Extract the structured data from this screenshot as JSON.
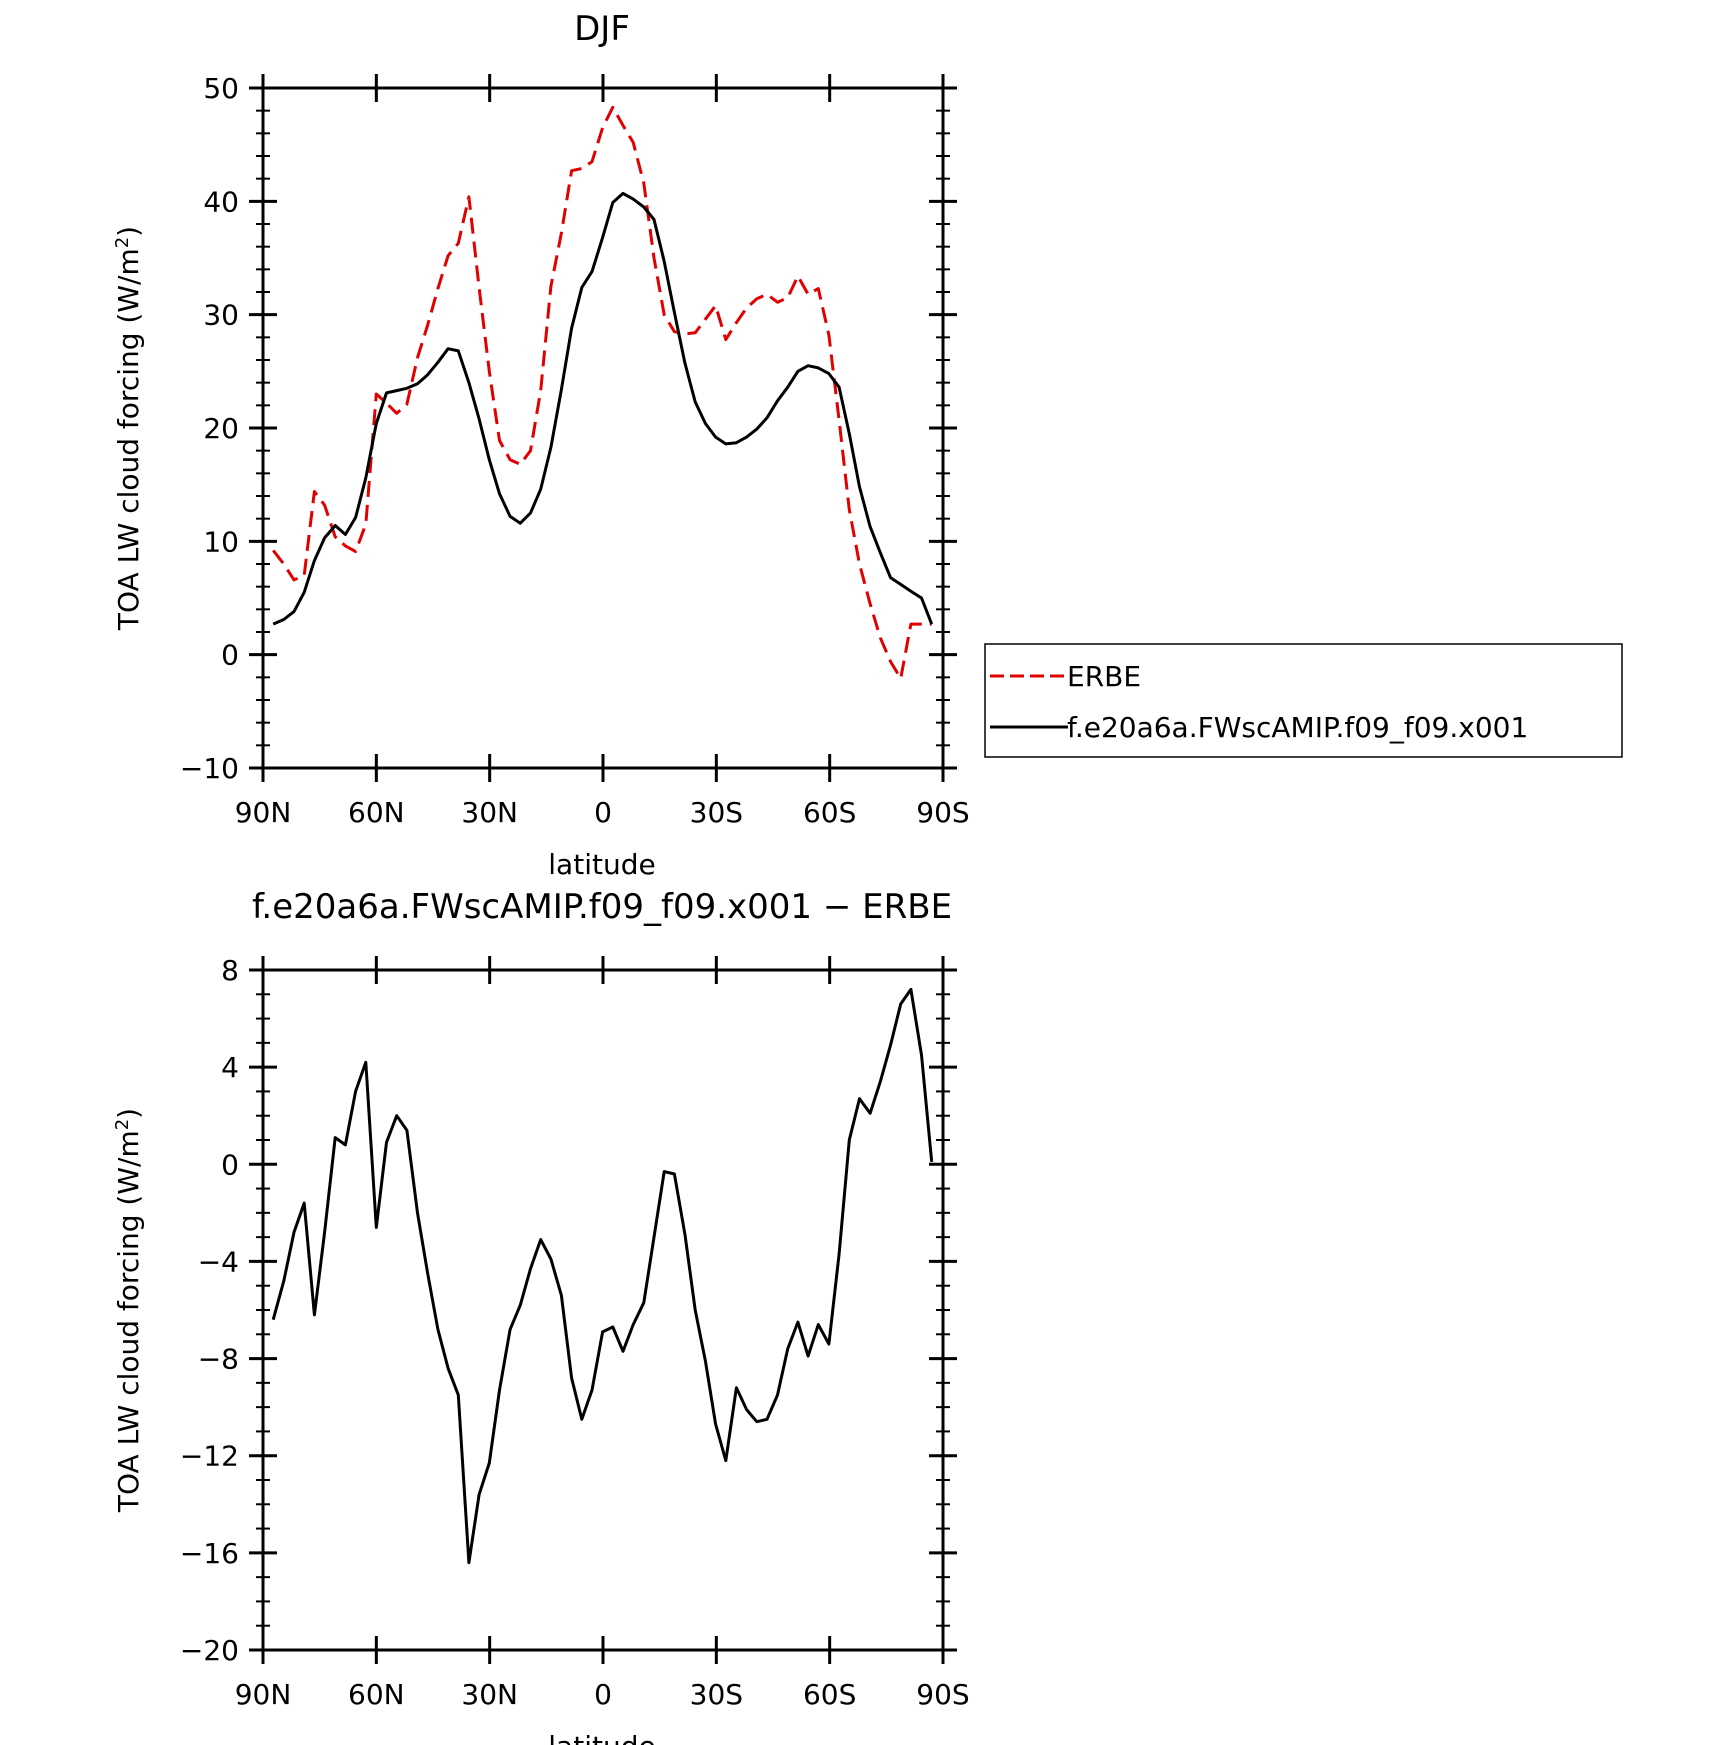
{
  "chart_data": [
    {
      "type": "line",
      "title": "DJF",
      "xlabel": "latitude",
      "ylabel": "TOA LW cloud forcing (W/m",
      "ylabel_sup": "2",
      "ylabel_close": ")",
      "xlim": [
        90,
        -90
      ],
      "ylim": [
        -10,
        50
      ],
      "xticks": [
        {
          "value": 90,
          "label": "90N"
        },
        {
          "value": 60,
          "label": "60N"
        },
        {
          "value": 30,
          "label": "30N"
        },
        {
          "value": 0,
          "label": "0"
        },
        {
          "value": -30,
          "label": "30S"
        },
        {
          "value": -60,
          "label": "60S"
        },
        {
          "value": -90,
          "label": "90S"
        }
      ],
      "yticks": [
        {
          "value": -10,
          "label": "−10"
        },
        {
          "value": 0,
          "label": "0"
        },
        {
          "value": 10,
          "label": "10"
        },
        {
          "value": 20,
          "label": "20"
        },
        {
          "value": 30,
          "label": "30"
        },
        {
          "value": 40,
          "label": "40"
        },
        {
          "value": 50,
          "label": "50"
        }
      ],
      "grid": false,
      "legend": "right",
      "x": [
        87.3,
        84.5,
        81.8,
        79.1,
        76.4,
        73.7,
        70.9,
        68.2,
        65.5,
        62.8,
        60.0,
        57.3,
        54.6,
        51.9,
        49.1,
        46.4,
        43.7,
        41.0,
        38.3,
        35.5,
        32.8,
        30.1,
        27.4,
        24.6,
        21.9,
        19.2,
        16.5,
        13.8,
        11.0,
        8.3,
        5.6,
        2.9,
        0.1,
        -2.6,
        -5.3,
        -8.0,
        -10.8,
        -13.5,
        -16.2,
        -18.9,
        -21.7,
        -24.4,
        -27.1,
        -29.8,
        -32.5,
        -35.3,
        -38.0,
        -40.7,
        -43.4,
        -46.2,
        -48.9,
        -51.6,
        -54.3,
        -57.0,
        -59.8,
        -62.5,
        -65.2,
        -67.9,
        -70.7,
        -73.4,
        -76.1,
        -78.8,
        -81.5,
        -84.3,
        -87.0
      ],
      "series": [
        {
          "name": "ERBE",
          "color": "#e00000",
          "dash": "dashed",
          "values": [
            9.2,
            8.0,
            6.6,
            7.0,
            14.4,
            13.2,
            10.4,
            9.6,
            9.1,
            11.5,
            23.0,
            22.2,
            21.3,
            22.1,
            26.2,
            29.1,
            32.3,
            35.2,
            36.3,
            40.4,
            32.4,
            25.0,
            18.9,
            17.2,
            16.8,
            18.0,
            23.3,
            32.5,
            37.2,
            42.7,
            42.9,
            43.5,
            46.5,
            48.3,
            46.7,
            45.2,
            41.6,
            35.0,
            30.0,
            28.5,
            28.3,
            28.4,
            29.6,
            30.8,
            27.8,
            29.3,
            30.6,
            31.4,
            31.8,
            31.1,
            31.5,
            33.4,
            31.8,
            32.3,
            28.2,
            20.7,
            12.8,
            8.0,
            4.5,
            1.5,
            -0.6,
            -2.1,
            2.7,
            2.7,
            2.7
          ]
        },
        {
          "name": "f.e20a6a.FWscAMIP.f09_f09.x001",
          "color": "#000000",
          "dash": "solid",
          "values": [
            2.7,
            3.1,
            3.8,
            5.5,
            8.3,
            10.3,
            11.4,
            10.6,
            12.1,
            15.6,
            20.4,
            23.1,
            23.3,
            23.5,
            23.9,
            24.7,
            25.8,
            27.0,
            26.8,
            24.0,
            20.8,
            17.2,
            14.2,
            12.2,
            11.6,
            12.5,
            14.6,
            18.3,
            23.4,
            28.8,
            32.4,
            33.8,
            36.8,
            39.9,
            40.7,
            40.2,
            39.5,
            38.4,
            34.7,
            30.2,
            25.7,
            22.3,
            20.4,
            19.2,
            18.6,
            18.7,
            19.2,
            19.9,
            20.9,
            22.4,
            23.6,
            25.0,
            25.5,
            25.3,
            24.8,
            23.6,
            19.5,
            14.8,
            11.3,
            9.0,
            6.8,
            6.2,
            5.6,
            5.0,
            2.7
          ]
        }
      ]
    },
    {
      "type": "line",
      "title": "f.e20a6a.FWscAMIP.f09_f09.x001 − ERBE",
      "xlabel": "latitude",
      "ylabel": "TOA LW cloud forcing (W/m",
      "ylabel_sup": "2",
      "ylabel_close": ")",
      "xlim": [
        90,
        -90
      ],
      "ylim": [
        -20,
        8
      ],
      "xticks": [
        {
          "value": 90,
          "label": "90N"
        },
        {
          "value": 60,
          "label": "60N"
        },
        {
          "value": 30,
          "label": "30N"
        },
        {
          "value": 0,
          "label": "0"
        },
        {
          "value": -30,
          "label": "30S"
        },
        {
          "value": -60,
          "label": "60S"
        },
        {
          "value": -90,
          "label": "90S"
        }
      ],
      "yticks": [
        {
          "value": -20,
          "label": "−20"
        },
        {
          "value": -16,
          "label": "−16"
        },
        {
          "value": -12,
          "label": "−12"
        },
        {
          "value": -8,
          "label": "−8"
        },
        {
          "value": -4,
          "label": "−4"
        },
        {
          "value": 0,
          "label": "0"
        },
        {
          "value": 4,
          "label": "4"
        },
        {
          "value": 8,
          "label": "8"
        }
      ],
      "grid": false,
      "x": [
        87.3,
        84.5,
        81.8,
        79.1,
        76.4,
        73.7,
        70.9,
        68.2,
        65.5,
        62.8,
        60.0,
        57.3,
        54.6,
        51.9,
        49.1,
        46.4,
        43.7,
        41.0,
        38.3,
        35.5,
        32.8,
        30.1,
        27.4,
        24.6,
        21.9,
        19.2,
        16.5,
        13.8,
        11.0,
        8.3,
        5.6,
        2.9,
        0.1,
        -2.6,
        -5.3,
        -8.0,
        -10.8,
        -13.5,
        -16.2,
        -18.9,
        -21.7,
        -24.4,
        -27.1,
        -29.8,
        -32.5,
        -35.3,
        -38.0,
        -40.7,
        -43.4,
        -46.2,
        -48.9,
        -51.6,
        -54.3,
        -57.0,
        -59.8,
        -62.5,
        -65.2,
        -67.9,
        -70.7,
        -73.4,
        -76.1,
        -78.8,
        -81.5,
        -84.3,
        -87.0
      ],
      "series": [
        {
          "color": "#000000",
          "dash": "solid",
          "values": [
            -6.4,
            -4.8,
            -2.8,
            -1.6,
            -6.2,
            -2.8,
            1.1,
            0.8,
            3.0,
            4.2,
            -2.6,
            0.9,
            2.0,
            1.4,
            -2.0,
            -4.5,
            -6.8,
            -8.4,
            -9.5,
            -16.4,
            -13.6,
            -12.3,
            -9.3,
            -6.8,
            -5.8,
            -4.3,
            -3.1,
            -3.9,
            -5.4,
            -8.8,
            -10.5,
            -9.3,
            -6.9,
            -6.7,
            -7.7,
            -6.6,
            -5.7,
            -3.0,
            -0.3,
            -0.4,
            -2.9,
            -6.0,
            -8.1,
            -10.7,
            -12.2,
            -9.2,
            -10.1,
            -10.6,
            -10.5,
            -9.5,
            -7.6,
            -6.5,
            -7.9,
            -6.6,
            -7.4,
            -3.7,
            1.0,
            2.7,
            2.1,
            3.4,
            4.9,
            6.6,
            7.2,
            4.5,
            0.1
          ]
        }
      ]
    }
  ],
  "legend": {
    "items": [
      {
        "label": "ERBE",
        "color": "#e00000",
        "dash": "dashed"
      },
      {
        "label": "f.e20a6a.FWscAMIP.f09_f09.x001",
        "color": "#000000",
        "dash": "solid"
      }
    ]
  }
}
